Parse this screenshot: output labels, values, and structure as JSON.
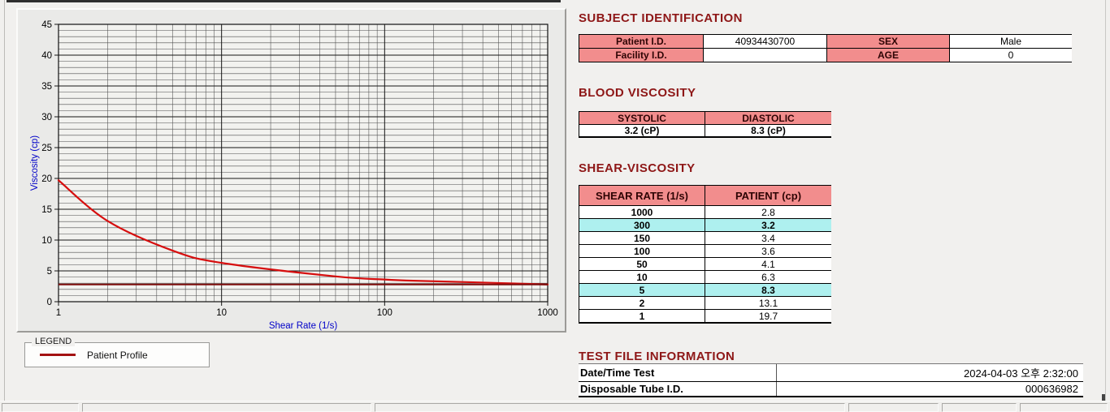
{
  "chart_data": {
    "type": "line",
    "title": "",
    "xlabel": "Shear Rate (1/s)",
    "ylabel": "Viscosity (cp)",
    "x_scale": "log",
    "xlim": [
      1,
      1000
    ],
    "ylim": [
      0,
      45
    ],
    "y_tick_step": 5,
    "y_minor_step": 1,
    "x_ticks": [
      1,
      10,
      100,
      1000
    ],
    "grid": true,
    "legend_position": "below-left",
    "series": [
      {
        "name": "Patient Profile",
        "color": "#d60e0e",
        "x": [
          1,
          2,
          5,
          10,
          50,
          100,
          150,
          300,
          1000
        ],
        "y": [
          19.7,
          13.1,
          8.3,
          6.3,
          4.1,
          3.6,
          3.4,
          3.2,
          2.8
        ]
      },
      {
        "name": "reference-line",
        "type": "hline",
        "color": "#7d0c0c",
        "y_value": 2.8
      }
    ],
    "axis_title_color": "#0000c8"
  },
  "legend": {
    "title": "LEGEND",
    "series_label": "Patient Profile",
    "swatch_color": "#a31111"
  },
  "sections": {
    "subject": {
      "heading": "SUBJECT IDENTIFICATION",
      "rows": [
        {
          "label": "Patient I.D.",
          "value": "40934430700",
          "label2": "SEX",
          "value2": "Male"
        },
        {
          "label": "Facility I.D.",
          "value": "",
          "label2": "AGE",
          "value2": "0"
        }
      ]
    },
    "blood": {
      "heading": "BLOOD VISCOSITY",
      "columns": [
        "SYSTOLIC",
        "DIASTOLIC"
      ],
      "values": [
        "3.2 (cP)",
        "8.3 (cP)"
      ]
    },
    "shear": {
      "heading": "SHEAR-VISCOSITY",
      "columns": [
        "SHEAR RATE (1/s)",
        "PATIENT (cp)"
      ],
      "rows": [
        {
          "rate": "1000",
          "value": "2.8",
          "highlight": false
        },
        {
          "rate": "300",
          "value": "3.2",
          "highlight": true
        },
        {
          "rate": "150",
          "value": "3.4",
          "highlight": false
        },
        {
          "rate": "100",
          "value": "3.6",
          "highlight": false
        },
        {
          "rate": "50",
          "value": "4.1",
          "highlight": false
        },
        {
          "rate": "10",
          "value": "6.3",
          "highlight": false
        },
        {
          "rate": "5",
          "value": "8.3",
          "highlight": true
        },
        {
          "rate": "2",
          "value": "13.1",
          "highlight": false
        },
        {
          "rate": "1",
          "value": "19.7",
          "highlight": false
        }
      ]
    },
    "testfile": {
      "heading": "TEST FILE INFORMATION",
      "rows": [
        {
          "label": "Date/Time Test",
          "value": "2024-04-03   오후 2:32:00"
        },
        {
          "label": "Disposable Tube I.D.",
          "value": "000636982"
        }
      ]
    }
  },
  "colors": {
    "heading": "#8e1717",
    "header_fill": "#f28d8d",
    "highlight_fill": "#aef0ef",
    "curve": "#d60e0e",
    "reference": "#7d0c0c"
  }
}
